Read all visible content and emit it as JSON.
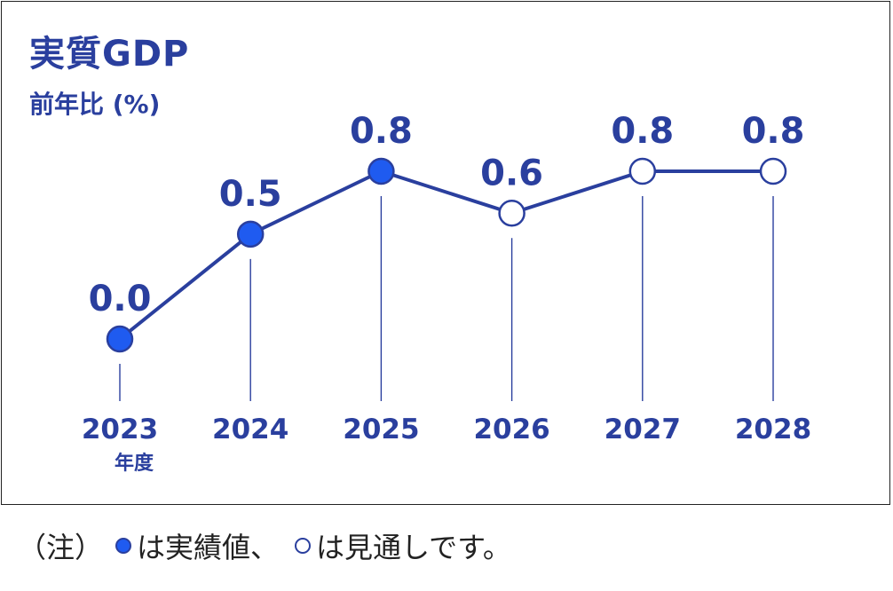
{
  "chart_data": {
    "type": "line",
    "title": "実質GDP",
    "ylabel": "前年比 (%)",
    "categories": [
      "2023",
      "2024",
      "2025",
      "2026",
      "2027",
      "2028"
    ],
    "x_unit_label": "年度",
    "values": [
      0.0,
      0.5,
      0.8,
      0.6,
      0.8,
      0.8
    ],
    "value_labels": [
      "0.0",
      "0.5",
      "0.8",
      "0.6",
      "0.8",
      "0.8"
    ],
    "kind": [
      "actual",
      "actual",
      "actual",
      "forecast",
      "forecast",
      "forecast"
    ],
    "ylim": [
      0.0,
      0.8
    ],
    "grid": false,
    "colors": {
      "line": "#2a3f9e",
      "actual_fill": "#1f5bf0",
      "forecast_fill": "#ffffff",
      "text": "#2a3f9e"
    }
  },
  "note": {
    "prefix": "（注）",
    "actual_text": "は実績値、",
    "forecast_text": "は見通しです。"
  }
}
